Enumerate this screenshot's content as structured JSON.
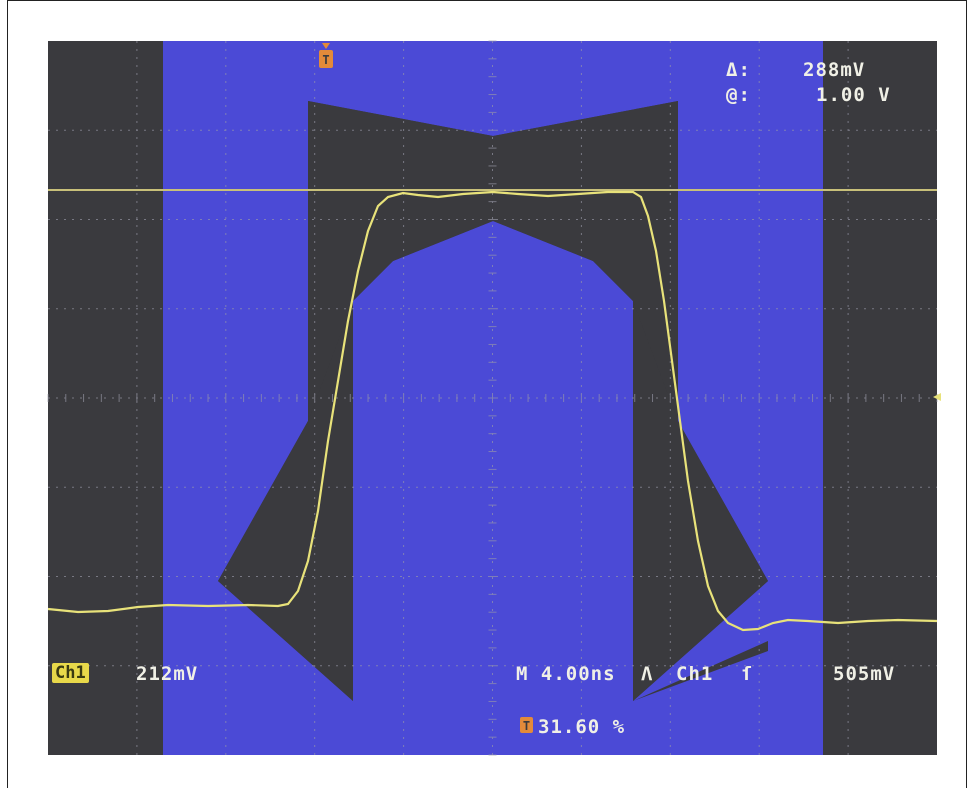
{
  "readouts": {
    "delta_symbol": "Δ:",
    "delta_value": "288mV",
    "at_symbol": "@:",
    "at_value": "1.00 V",
    "channel_badge": "Ch1",
    "channel_scale": "212mV",
    "timebase": "M 4.00ns",
    "trigger_source": "Ch1",
    "trigger_level": "505mV",
    "trigger_position": "31.60 %"
  },
  "icons": {
    "trigger_marker": "T-marker-icon",
    "ground_marker": "ground-arrow-icon",
    "slope": "rising-edge-icon",
    "trigger_glyph": "trigger-icon"
  },
  "colors": {
    "screen_bg": "#3a3a3e",
    "mask": "#4b4ad6",
    "trace": "#e8e27a",
    "cursor": "#c8c07a",
    "text": "#f0f0e6",
    "marker": "#e38a3a"
  }
}
